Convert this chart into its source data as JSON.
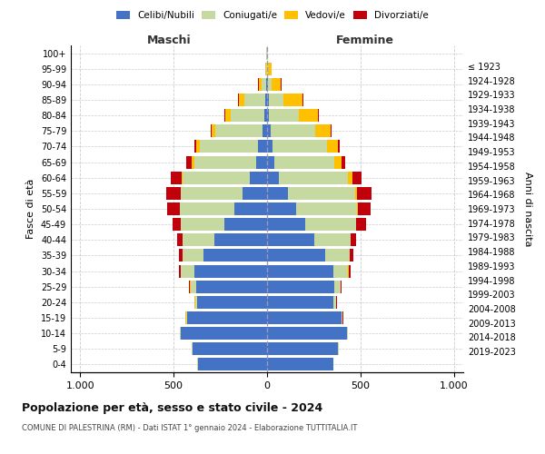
{
  "age_groups": [
    "0-4",
    "5-9",
    "10-14",
    "15-19",
    "20-24",
    "25-29",
    "30-34",
    "35-39",
    "40-44",
    "45-49",
    "50-54",
    "55-59",
    "60-64",
    "65-69",
    "70-74",
    "75-79",
    "80-84",
    "85-89",
    "90-94",
    "95-99",
    "100+"
  ],
  "birth_years": [
    "2019-2023",
    "2014-2018",
    "2009-2013",
    "2004-2008",
    "1999-2003",
    "1994-1998",
    "1989-1993",
    "1984-1988",
    "1979-1983",
    "1974-1978",
    "1969-1973",
    "1964-1968",
    "1959-1963",
    "1954-1958",
    "1949-1953",
    "1944-1948",
    "1939-1943",
    "1934-1938",
    "1929-1933",
    "1924-1928",
    "≤ 1923"
  ],
  "male": {
    "celibi": [
      370,
      400,
      460,
      430,
      375,
      380,
      390,
      340,
      280,
      230,
      175,
      130,
      90,
      60,
      50,
      25,
      15,
      10,
      5,
      2,
      2
    ],
    "coniugati": [
      2,
      2,
      5,
      5,
      10,
      30,
      70,
      110,
      170,
      230,
      290,
      330,
      360,
      330,
      310,
      250,
      180,
      110,
      25,
      5,
      2
    ],
    "vedovi": [
      0,
      0,
      1,
      1,
      2,
      2,
      2,
      2,
      2,
      2,
      2,
      3,
      5,
      15,
      20,
      20,
      30,
      30,
      15,
      5,
      1
    ],
    "divorziati": [
      0,
      0,
      0,
      1,
      2,
      5,
      10,
      20,
      30,
      45,
      70,
      75,
      60,
      30,
      10,
      5,
      5,
      5,
      2,
      0,
      0
    ]
  },
  "female": {
    "nubili": [
      355,
      380,
      430,
      400,
      355,
      360,
      355,
      310,
      255,
      205,
      155,
      110,
      65,
      40,
      30,
      18,
      10,
      8,
      5,
      2,
      2
    ],
    "coniugate": [
      2,
      2,
      5,
      5,
      15,
      35,
      80,
      130,
      190,
      270,
      325,
      360,
      370,
      320,
      290,
      240,
      160,
      80,
      20,
      5,
      2
    ],
    "vedove": [
      0,
      0,
      0,
      0,
      1,
      1,
      2,
      2,
      2,
      3,
      5,
      10,
      20,
      40,
      60,
      80,
      100,
      100,
      50,
      15,
      2
    ],
    "divorziate": [
      0,
      0,
      0,
      1,
      2,
      5,
      10,
      20,
      30,
      50,
      70,
      80,
      50,
      20,
      10,
      5,
      5,
      5,
      2,
      0,
      0
    ]
  },
  "colors": {
    "celibi": "#4472c4",
    "coniugati": "#c5d9a0",
    "vedovi": "#ffc000",
    "divorziati": "#c0000b"
  },
  "title": "Popolazione per età, sesso e stato civile - 2024",
  "subtitle": "COMUNE DI PALESTRINA (RM) - Dati ISTAT 1° gennaio 2024 - Elaborazione TUTTITALIA.IT",
  "xlabel_left": "Maschi",
  "xlabel_right": "Femmine",
  "ylabel_left": "Fasce di età",
  "ylabel_right": "Anni di nascita",
  "xlim": 1050,
  "legend_labels": [
    "Celibi/Nubili",
    "Coniugati/e",
    "Vedovi/e",
    "Divorziati/e"
  ],
  "background_color": "#ffffff",
  "grid_color": "#cccccc"
}
